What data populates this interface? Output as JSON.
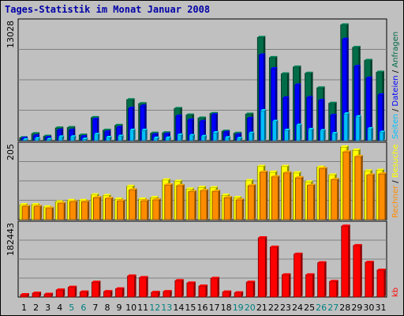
{
  "chart_data": {
    "type": "bar",
    "title": "Tages-Statistik im Monat Januar 2008",
    "categories": [
      "1",
      "2",
      "3",
      "4",
      "5",
      "6",
      "7",
      "8",
      "9",
      "10",
      "11",
      "12",
      "13",
      "14",
      "15",
      "16",
      "17",
      "18",
      "19",
      "20",
      "21",
      "22",
      "23",
      "24",
      "25",
      "26",
      "27",
      "28",
      "29",
      "30",
      "31"
    ],
    "weekend_categories": [
      "5",
      "6",
      "12",
      "13",
      "19",
      "20",
      "26",
      "27"
    ],
    "panels": [
      {
        "id": "top",
        "ymax_label": "13028",
        "ymax": 13028,
        "right_labels": [
          "Anfragen",
          "Dateien",
          "Seiten"
        ],
        "series": [
          {
            "name": "Anfragen",
            "color": "#006c48",
            "values": [
              320,
              770,
              480,
              1410,
              1450,
              620,
              2560,
              1160,
              1700,
              4560,
              4120,
              820,
              870,
              3580,
              2850,
              2510,
              3020,
              1040,
              810,
              2950,
              11500,
              9250,
              7440,
              8200,
              7500,
              5880,
              4160,
              12900,
              10390,
              8940,
              7630
            ]
          },
          {
            "name": "Dateien",
            "color": "#0000ff",
            "values": [
              250,
              540,
              350,
              1150,
              1150,
              440,
              2380,
              980,
              1470,
              3600,
              3850,
              660,
              730,
              2730,
              2300,
              2130,
              2880,
              920,
              650,
              2480,
              9540,
              8010,
              4760,
              6200,
              4800,
              4470,
              2820,
              11300,
              8260,
              6960,
              5090
            ]
          },
          {
            "name": "Seiten",
            "color": "#00bfff",
            "values": [
              100,
              220,
              130,
              410,
              420,
              160,
              690,
              350,
              480,
              1160,
              1150,
              280,
              290,
              630,
              560,
              460,
              880,
              320,
              240,
              820,
              3330,
              2150,
              1150,
              1720,
              1240,
              1110,
              790,
              2980,
              2660,
              1330,
              930
            ]
          }
        ]
      },
      {
        "id": "middle",
        "ymax_label": "205",
        "ymax": 205,
        "right_labels": [
          "Rechner",
          "Besuche"
        ],
        "series": [
          {
            "name": "Besuche",
            "color": "#ffff00",
            "values": [
              42,
              42,
              36,
              50,
              54,
              54,
              70,
              68,
              58,
              94,
              58,
              62,
              112,
              108,
              86,
              91,
              90,
              69,
              62,
              110,
              150,
              134,
              150,
              132,
              106,
              148,
              126,
              205,
              196,
              137,
              139
            ]
          },
          {
            "name": "Rechner",
            "color": "#ff8c00",
            "values": [
              37,
              37,
              32,
              46,
              50,
              50,
              62,
              60,
              53,
              84,
              53,
              56,
              98,
              96,
              79,
              82,
              80,
              62,
              56,
              96,
              134,
              121,
              132,
              118,
              97,
              144,
              113,
              191,
              178,
              126,
              129
            ]
          }
        ]
      },
      {
        "id": "bottom",
        "ymax_label": "182443",
        "ymax": 182443,
        "right_labels": [
          "kb"
        ],
        "series": [
          {
            "name": "kb",
            "color": "#ff0000",
            "values": [
              6000,
              10000,
              7000,
              18000,
              25000,
              13000,
              38000,
              14000,
              21000,
              54000,
              50000,
              12000,
              14000,
              42000,
              36000,
              28000,
              48000,
              13000,
              11000,
              38000,
              152000,
              128000,
              57000,
              110000,
              57000,
              88000,
              40000,
              182000,
              132000,
              89000,
              69000
            ]
          }
        ]
      }
    ]
  },
  "colors": {
    "background": "#c0c0c0",
    "title": "#0000a8",
    "axis_label": "#000000",
    "weekend_label": "#008080",
    "label_blue": "#0000ff",
    "label_cyan": "#00bfff",
    "label_green": "#006c48",
    "label_orange": "#ff8c00",
    "label_yellow": "#ffff00",
    "label_red": "#ff0000"
  }
}
